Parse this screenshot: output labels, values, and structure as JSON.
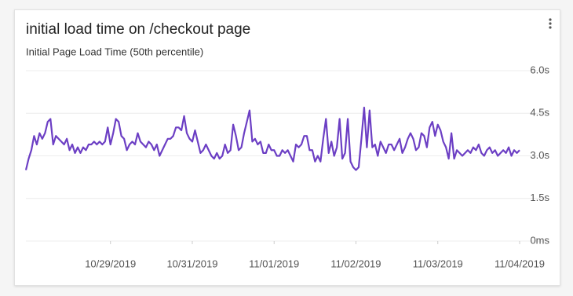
{
  "chart_data": {
    "type": "line",
    "title": "initial load time on /checkout page",
    "subtitle": "Initial Page Load Time (50th percentile)",
    "series": [
      {
        "name": "Initial Page Load Time (50th percentile)",
        "color": "#6c3fc4",
        "values": [
          2.5,
          2.9,
          3.2,
          3.7,
          3.4,
          3.8,
          3.6,
          3.8,
          4.2,
          4.3,
          3.4,
          3.7,
          3.6,
          3.5,
          3.4,
          3.6,
          3.2,
          3.4,
          3.1,
          3.3,
          3.1,
          3.3,
          3.2,
          3.4,
          3.4,
          3.5,
          3.4,
          3.5,
          3.4,
          3.5,
          4.0,
          3.4,
          3.8,
          4.3,
          4.2,
          3.7,
          3.6,
          3.2,
          3.4,
          3.5,
          3.4,
          3.8,
          3.5,
          3.4,
          3.3,
          3.5,
          3.4,
          3.2,
          3.4,
          3.0,
          3.2,
          3.4,
          3.6,
          3.6,
          3.7,
          4.0,
          4.0,
          3.9,
          4.4,
          3.8,
          3.6,
          3.5,
          3.9,
          3.5,
          3.1,
          3.2,
          3.4,
          3.2,
          3.0,
          2.9,
          3.1,
          2.9,
          3.0,
          3.4,
          3.1,
          3.2,
          4.1,
          3.7,
          3.2,
          3.3,
          3.8,
          4.2,
          4.6,
          3.5,
          3.6,
          3.4,
          3.5,
          3.1,
          3.1,
          3.4,
          3.2,
          3.2,
          3.0,
          3.0,
          3.2,
          3.1,
          3.2,
          3.0,
          2.8,
          3.4,
          3.3,
          3.4,
          3.7,
          3.7,
          3.2,
          3.2,
          2.8,
          3.0,
          2.8,
          3.6,
          4.3,
          3.1,
          3.5,
          3.0,
          3.3,
          4.3,
          2.9,
          3.1,
          4.3,
          2.8,
          2.6,
          2.5,
          2.6,
          3.6,
          4.7,
          3.3,
          4.6,
          3.3,
          3.4,
          3.0,
          3.5,
          3.3,
          3.1,
          3.4,
          3.4,
          3.2,
          3.4,
          3.6,
          3.1,
          3.3,
          3.6,
          3.8,
          3.6,
          3.2,
          3.3,
          3.8,
          3.7,
          3.3,
          4.0,
          4.2,
          3.7,
          4.1,
          3.9,
          3.5,
          3.3,
          2.9,
          3.8,
          2.9,
          3.2,
          3.1,
          3.0,
          3.1,
          3.2,
          3.1,
          3.3,
          3.2,
          3.4,
          3.1,
          3.0,
          3.2,
          3.3,
          3.1,
          3.2,
          3.0,
          3.1,
          3.2,
          3.1,
          3.3,
          3.0,
          3.2,
          3.1,
          3.2
        ]
      }
    ],
    "xlim": [
      0,
      181
    ],
    "xticks": [
      {
        "value": 31,
        "label": "10/29/2019"
      },
      {
        "value": 61,
        "label": "10/31/2019"
      },
      {
        "value": 91,
        "label": "11/01/2019"
      },
      {
        "value": 121,
        "label": "11/02/2019"
      },
      {
        "value": 151,
        "label": "11/03/2019"
      },
      {
        "value": 181,
        "label": "11/04/2019"
      }
    ],
    "ylim": [
      0,
      6
    ],
    "yticks": [
      {
        "value": 0,
        "label": "0ms"
      },
      {
        "value": 1.5,
        "label": "1.5s"
      },
      {
        "value": 3,
        "label": "3.0s"
      },
      {
        "value": 4.5,
        "label": "4.5s"
      },
      {
        "value": 6,
        "label": "6.0s"
      }
    ],
    "grid": true
  }
}
